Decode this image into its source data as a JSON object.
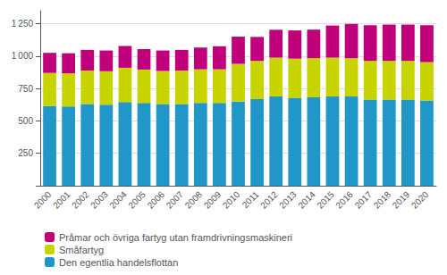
{
  "chart_data": {
    "type": "bar",
    "stacked": true,
    "grid": true,
    "legend": "lower left",
    "categories": [
      "2000",
      "2001",
      "2002",
      "2003",
      "2004",
      "2005",
      "2006",
      "2007",
      "2008",
      "2009",
      "2010",
      "2011",
      "2012",
      "2013",
      "2014",
      "2015",
      "2016",
      "2017",
      "2018",
      "2019",
      "2020"
    ],
    "series": [
      {
        "name": "Den egentlia handelsflottan",
        "color": "#2196c8",
        "values": [
          615,
          612,
          630,
          625,
          645,
          638,
          630,
          630,
          638,
          638,
          650,
          668,
          688,
          678,
          682,
          688,
          688,
          665,
          665,
          665,
          658
        ]
      },
      {
        "name": "Småfartyg",
        "color": "#c8d400",
        "values": [
          255,
          255,
          258,
          258,
          265,
          258,
          255,
          258,
          260,
          260,
          290,
          295,
          300,
          302,
          302,
          300,
          295,
          298,
          298,
          298,
          295
        ]
      },
      {
        "name": "Pråmar och övriga fartyg utan framdrivningsmaskineri",
        "color": "#c0007a",
        "values": [
          155,
          155,
          160,
          160,
          168,
          158,
          158,
          160,
          168,
          178,
          210,
          185,
          215,
          218,
          220,
          248,
          265,
          275,
          280,
          280,
          285
        ]
      }
    ],
    "ylim": [
      0,
      1350
    ],
    "yticks": [
      {
        "value": 0,
        "label": ""
      },
      250,
      500,
      750,
      {
        "value": 1000,
        "label": "1 000"
      },
      {
        "value": 1250,
        "label": "1 250"
      }
    ]
  }
}
